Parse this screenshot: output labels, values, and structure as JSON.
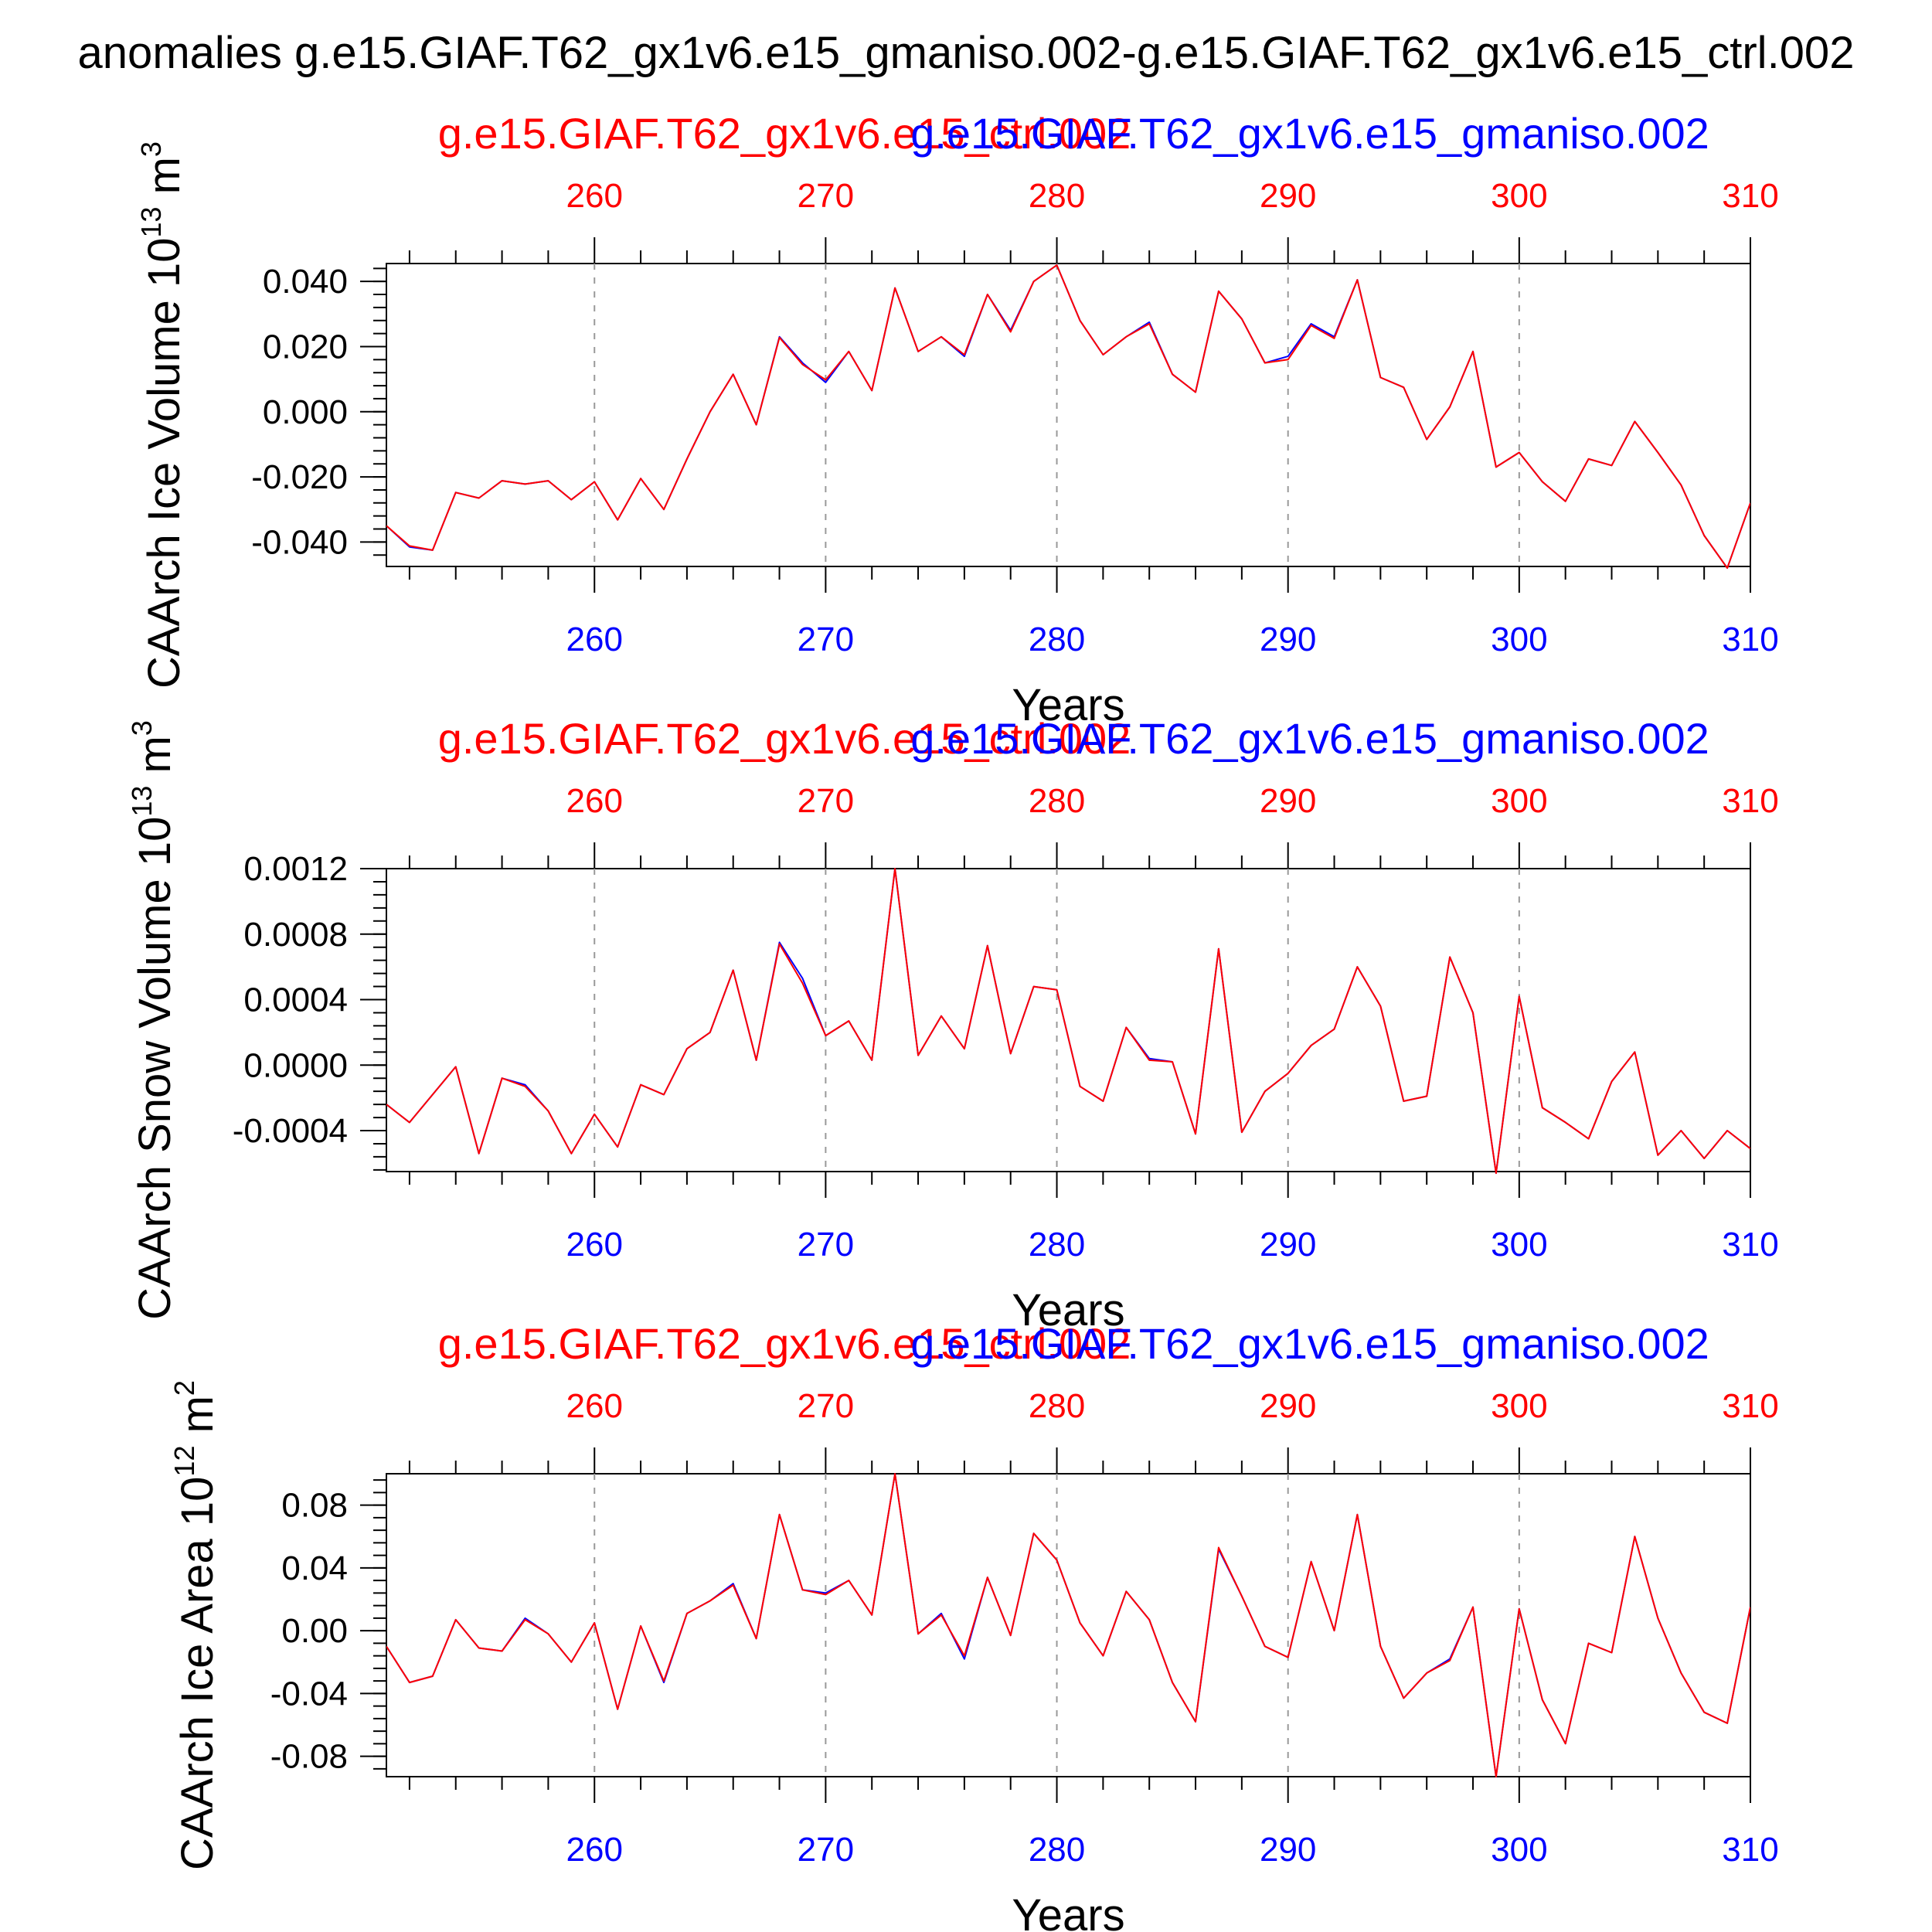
{
  "figure_title": "anomalies g.e15.GIAF.T62_gx1v6.e15_gmaniso.002-g.e15.GIAF.T62_gx1v6.e15_ctrl.002",
  "colors": {
    "ctrl": "#ff0000",
    "gmaniso": "#0000ff",
    "frame": "#000000",
    "grid": "#999999"
  },
  "chart_data": [
    {
      "type": "line",
      "ylabel": "CAArch Ice Volume 10",
      "ylabel_exp": "13",
      "ylabel_unit": " m",
      "ylabel_unit_exp": "3",
      "xlabel": "Years",
      "legend": {
        "ctrl": "g.e15.GIAF.T62_gx1v6.e15_ctrl.002",
        "gmaniso": "g.e15.GIAF.T62_gx1v6.e15_gmaniso.002"
      },
      "xlim": [
        251,
        310
      ],
      "ylim": [
        -0.0475,
        0.0455
      ],
      "xticks": [
        260,
        270,
        280,
        290,
        300,
        310
      ],
      "yticks": [
        -0.04,
        -0.02,
        0.0,
        0.02,
        0.04
      ],
      "ytick_labels": [
        "-0.040",
        "-0.020",
        "0.000",
        "0.020",
        "0.040"
      ],
      "yminor": 0.004,
      "x_start": 251,
      "series": [
        {
          "name": "g.e15.GIAF.T62_gx1v6.e15_gmaniso.002",
          "color": "#0000ff",
          "values": [
            -0.035,
            -0.0415,
            -0.0425,
            -0.0248,
            -0.0265,
            -0.0212,
            -0.0222,
            -0.0212,
            -0.027,
            -0.0215,
            -0.0332,
            -0.0205,
            -0.03,
            -0.0145,
            0.0,
            0.0115,
            -0.004,
            0.023,
            0.015,
            0.009,
            0.0185,
            0.0065,
            0.038,
            0.0185,
            0.023,
            0.017,
            0.036,
            0.025,
            0.04,
            0.045,
            0.028,
            0.0175,
            0.023,
            0.0275,
            0.0115,
            0.006,
            0.037,
            0.0285,
            0.015,
            0.017,
            0.027,
            0.023,
            0.0405,
            0.0105,
            0.0075,
            -0.0085,
            0.0015,
            0.0185,
            -0.017,
            -0.0125,
            -0.0215,
            -0.0275,
            -0.0145,
            -0.0165,
            -0.003,
            -0.0125,
            -0.0225,
            -0.038,
            -0.048,
            -0.028
          ]
        },
        {
          "name": "g.e15.GIAF.T62_gx1v6.e15_ctrl.002",
          "color": "#ff0000",
          "values": [
            -0.035,
            -0.0412,
            -0.0425,
            -0.0248,
            -0.0265,
            -0.0212,
            -0.0222,
            -0.0212,
            -0.027,
            -0.0215,
            -0.0332,
            -0.0205,
            -0.03,
            -0.0145,
            0.0,
            0.0115,
            -0.004,
            0.0228,
            0.0145,
            0.0098,
            0.0185,
            0.0065,
            0.038,
            0.0185,
            0.023,
            0.0175,
            0.036,
            0.0245,
            0.04,
            0.045,
            0.028,
            0.0175,
            0.023,
            0.027,
            0.0115,
            0.006,
            0.037,
            0.0285,
            0.015,
            0.016,
            0.0265,
            0.0225,
            0.0405,
            0.0105,
            0.0075,
            -0.0085,
            0.0015,
            0.0185,
            -0.017,
            -0.0125,
            -0.0215,
            -0.0275,
            -0.0145,
            -0.0165,
            -0.003,
            -0.0125,
            -0.0225,
            -0.038,
            -0.048,
            -0.028
          ]
        }
      ]
    },
    {
      "type": "line",
      "ylabel": "CAArch Snow Volume 10",
      "ylabel_exp": "13",
      "ylabel_unit": " m",
      "ylabel_unit_exp": "3",
      "xlabel": "Years",
      "legend": {
        "ctrl": "g.e15.GIAF.T62_gx1v6.e15_ctrl.002",
        "gmaniso": "g.e15.GIAF.T62_gx1v6.e15_gmaniso.002"
      },
      "xlim": [
        251,
        310
      ],
      "ylim": [
        -0.00065,
        0.0012
      ],
      "xticks": [
        260,
        270,
        280,
        290,
        300,
        310
      ],
      "yticks": [
        -0.0004,
        0.0,
        0.0004,
        0.0008,
        0.0012
      ],
      "ytick_labels": [
        "-0.0004",
        "0.0000",
        "0.0004",
        "0.0008",
        "0.0012"
      ],
      "yminor": 8e-05,
      "x_start": 251,
      "series": [
        {
          "name": "g.e15.GIAF.T62_gx1v6.e15_gmaniso.002",
          "color": "#0000ff",
          "values": [
            -0.00024,
            -0.00035,
            -0.00018,
            -1e-05,
            -0.00054,
            -8e-05,
            -0.00012,
            -0.00028,
            -0.00054,
            -0.0003,
            -0.0005,
            -0.00012,
            -0.00018,
            0.0001,
            0.0002,
            0.00058,
            3e-05,
            0.00075,
            0.00053,
            0.00018,
            0.00027,
            3e-05,
            0.0012,
            6e-05,
            0.0003,
            0.0001,
            0.00073,
            7e-05,
            0.00048,
            0.00046,
            -0.00013,
            -0.00022,
            0.00023,
            4e-05,
            2e-05,
            -0.00042,
            0.00071,
            -0.00041,
            -0.00016,
            -5e-05,
            0.00012,
            0.00022,
            0.0006,
            0.00036,
            -0.00022,
            -0.00019,
            0.00066,
            0.00032,
            -0.00066,
            0.00042,
            -0.00026,
            -0.00035,
            -0.00045,
            -0.0001,
            8e-05,
            -0.00055,
            -0.0004,
            -0.00057,
            -0.0004,
            -0.00051
          ]
        },
        {
          "name": "g.e15.GIAF.T62_gx1v6.e15_ctrl.002",
          "color": "#ff0000",
          "values": [
            -0.00024,
            -0.00035,
            -0.00018,
            -1e-05,
            -0.00054,
            -8e-05,
            -0.00013,
            -0.00028,
            -0.00054,
            -0.0003,
            -0.0005,
            -0.00012,
            -0.00018,
            0.0001,
            0.0002,
            0.00058,
            3e-05,
            0.00074,
            0.0005,
            0.00018,
            0.00027,
            3e-05,
            0.0012,
            6e-05,
            0.0003,
            0.0001,
            0.00073,
            7e-05,
            0.00048,
            0.00046,
            -0.00013,
            -0.00022,
            0.00023,
            3e-05,
            2e-05,
            -0.00042,
            0.00071,
            -0.00041,
            -0.00016,
            -5e-05,
            0.00012,
            0.00022,
            0.0006,
            0.00036,
            -0.00022,
            -0.00019,
            0.00066,
            0.00032,
            -0.00066,
            0.00042,
            -0.00026,
            -0.00035,
            -0.00045,
            -0.0001,
            8e-05,
            -0.00055,
            -0.0004,
            -0.00057,
            -0.0004,
            -0.00051
          ]
        }
      ]
    },
    {
      "type": "line",
      "ylabel": "CAArch Ice Area 10",
      "ylabel_exp": "12",
      "ylabel_unit": " m",
      "ylabel_unit_exp": "2",
      "xlabel": "Years",
      "legend": {
        "ctrl": "g.e15.GIAF.T62_gx1v6.e15_ctrl.002",
        "gmaniso": "g.e15.GIAF.T62_gx1v6.e15_gmaniso.002"
      },
      "xlim": [
        251,
        310
      ],
      "ylim": [
        -0.093,
        0.1
      ],
      "xticks": [
        260,
        270,
        280,
        290,
        300,
        310
      ],
      "yticks": [
        -0.08,
        -0.04,
        0.0,
        0.04,
        0.08
      ],
      "ytick_labels": [
        "-0.08",
        "-0.04",
        "0.00",
        "0.04",
        "0.08"
      ],
      "yminor": 0.008,
      "x_start": 251,
      "series": [
        {
          "name": "g.e15.GIAF.T62_gx1v6.e15_gmaniso.002",
          "color": "#0000ff",
          "values": [
            -0.01,
            -0.033,
            -0.029,
            0.007,
            -0.011,
            -0.013,
            0.008,
            -0.002,
            -0.02,
            0.005,
            -0.05,
            0.003,
            -0.033,
            0.011,
            0.019,
            0.03,
            -0.005,
            0.074,
            0.026,
            0.024,
            0.032,
            0.01,
            0.1,
            -0.002,
            0.011,
            -0.018,
            0.034,
            -0.003,
            0.062,
            0.045,
            0.005,
            -0.016,
            0.025,
            0.007,
            -0.033,
            -0.058,
            0.052,
            0.022,
            -0.01,
            -0.017,
            0.044,
            0.0,
            0.074,
            -0.01,
            -0.043,
            -0.027,
            -0.018,
            0.015,
            -0.093,
            0.014,
            -0.044,
            -0.072,
            -0.008,
            -0.014,
            0.06,
            0.008,
            -0.027,
            -0.052,
            -0.059,
            0.015
          ]
        },
        {
          "name": "g.e15.GIAF.T62_gx1v6.e15_ctrl.002",
          "color": "#ff0000",
          "values": [
            -0.01,
            -0.033,
            -0.029,
            0.007,
            -0.011,
            -0.013,
            0.007,
            -0.002,
            -0.02,
            0.005,
            -0.05,
            0.003,
            -0.032,
            0.011,
            0.019,
            0.029,
            -0.005,
            0.074,
            0.026,
            0.023,
            0.032,
            0.01,
            0.1,
            -0.002,
            0.01,
            -0.016,
            0.034,
            -0.003,
            0.062,
            0.045,
            0.005,
            -0.016,
            0.025,
            0.007,
            -0.033,
            -0.058,
            0.053,
            0.022,
            -0.01,
            -0.017,
            0.044,
            0.0,
            0.074,
            -0.01,
            -0.043,
            -0.027,
            -0.019,
            0.015,
            -0.093,
            0.014,
            -0.044,
            -0.072,
            -0.008,
            -0.014,
            0.06,
            0.008,
            -0.027,
            -0.052,
            -0.059,
            0.015
          ]
        }
      ]
    }
  ]
}
